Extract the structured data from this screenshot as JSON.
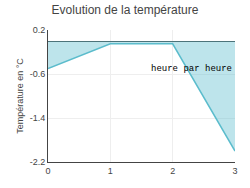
{
  "chart_data": {
    "type": "area",
    "title": "Evolution de la température",
    "ylabel": "Température en °C",
    "annotations": [
      {
        "text": "heure par heure",
        "x": 2.3,
        "y": -0.5
      }
    ],
    "x": [
      0,
      1,
      2,
      3
    ],
    "values": [
      -0.5,
      -0.05,
      -0.05,
      -2.0
    ],
    "color": "#5bbccc",
    "xlim": [
      0,
      3
    ],
    "ylim": [
      -2.2,
      0.2
    ],
    "xticks": [
      0,
      1,
      2,
      3
    ],
    "yticks": [
      0.2,
      -0.6,
      -1.4,
      -2.2
    ],
    "grid": true
  }
}
